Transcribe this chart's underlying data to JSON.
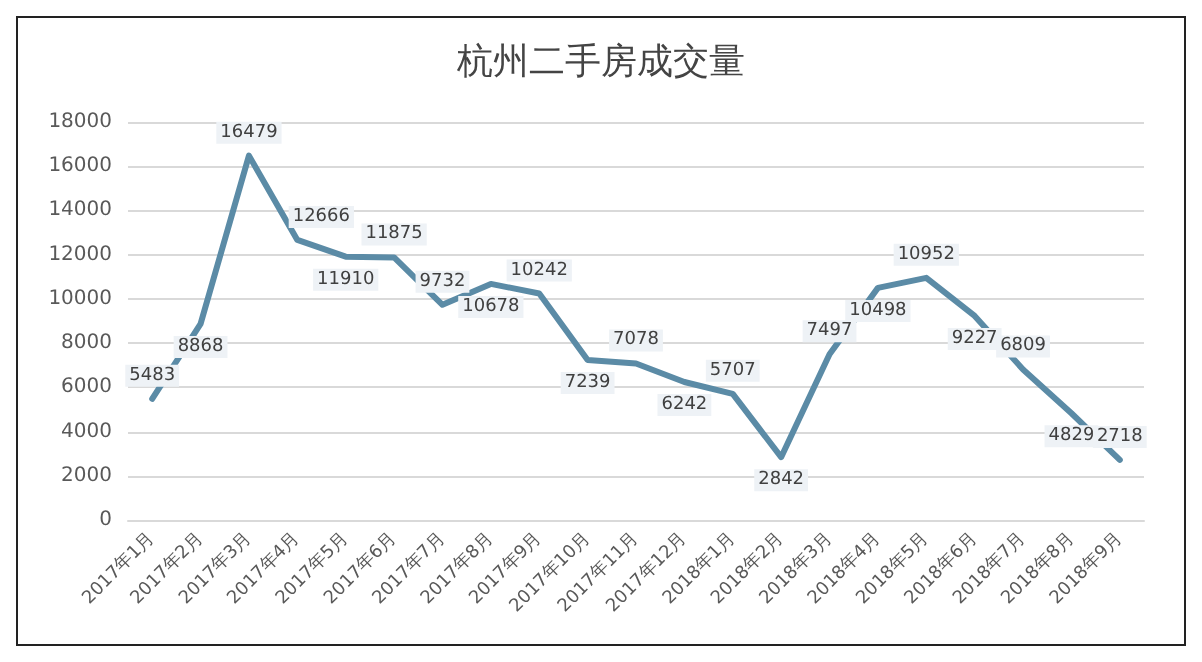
{
  "chart_data": {
    "type": "line",
    "title": "杭州二手房成交量",
    "categories": [
      "2017年1月",
      "2017年2月",
      "2017年3月",
      "2017年4月",
      "2017年5月",
      "2017年6月",
      "2017年7月",
      "2017年8月",
      "2017年9月",
      "2017年10月",
      "2017年11月",
      "2017年12月",
      "2018年1月",
      "2018年2月",
      "2018年3月",
      "2018年4月",
      "2018年5月",
      "2018年6月",
      "2018年7月",
      "2018年8月",
      "2018年9月"
    ],
    "series": [
      {
        "color": "#5b8ba6",
        "values": [
          5483,
          8868,
          16479,
          12666,
          11910,
          11875,
          9732,
          10678,
          10242,
          7239,
          7078,
          6242,
          5707,
          2842,
          7497,
          10498,
          10952,
          9227,
          6809,
          4829,
          2718
        ]
      }
    ],
    "ylim": [
      0,
      18000
    ],
    "yticks": [
      0,
      2000,
      4000,
      6000,
      8000,
      10000,
      12000,
      14000,
      16000,
      18000
    ],
    "grid": "y",
    "data_labels": true,
    "marker": "none"
  }
}
